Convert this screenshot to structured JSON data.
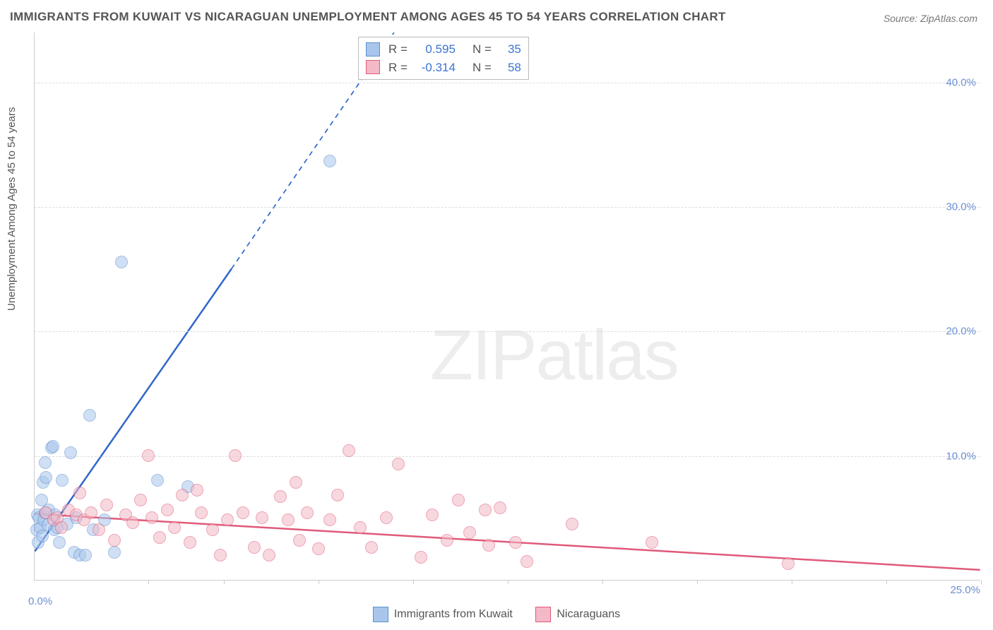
{
  "title": "IMMIGRANTS FROM KUWAIT VS NICARAGUAN UNEMPLOYMENT AMONG AGES 45 TO 54 YEARS CORRELATION CHART",
  "source": "Source: ZipAtlas.com",
  "yaxis_title": "Unemployment Among Ages 45 to 54 years",
  "watermark_a": "ZIP",
  "watermark_b": "atlas",
  "chart": {
    "xlim": [
      0,
      25
    ],
    "ylim": [
      0,
      44
    ],
    "yticks": [
      10,
      20,
      30,
      40
    ],
    "ytick_labels": [
      "10.0%",
      "20.0%",
      "30.0%",
      "40.0%"
    ],
    "xtick_positions": [
      3,
      5,
      7.5,
      10,
      12.5,
      15,
      17.5,
      20,
      22.5,
      25
    ],
    "xlabel_min": "0.0%",
    "xlabel_max": "25.0%",
    "grid_color": "#dddddd",
    "background_color": "#ffffff",
    "axis_color": "#cccccc",
    "tick_label_color": "#6b8fd4",
    "marker_radius": 9,
    "marker_opacity": 0.55
  },
  "series": [
    {
      "id": "kuwait",
      "label": "Immigrants from Kuwait",
      "fill": "#a8c6ec",
      "stroke": "#5b8fd0",
      "R": "0.595",
      "N": "35",
      "trend": {
        "x1": 0,
        "y1": 2.3,
        "x2_solid": 5.2,
        "y2_solid": 25,
        "x2_dash": 9.5,
        "y2_dash": 44,
        "color": "#2f67c9",
        "width": 2.5
      },
      "points": [
        [
          0.05,
          4.0
        ],
        [
          0.08,
          5.2
        ],
        [
          0.1,
          3.0
        ],
        [
          0.12,
          5.0
        ],
        [
          0.15,
          4.2
        ],
        [
          0.18,
          6.4
        ],
        [
          0.2,
          3.5
        ],
        [
          0.22,
          7.8
        ],
        [
          0.25,
          4.8
        ],
        [
          0.28,
          5.4
        ],
        [
          0.3,
          8.2
        ],
        [
          0.28,
          9.4
        ],
        [
          0.35,
          4.4
        ],
        [
          0.38,
          5.6
        ],
        [
          0.45,
          10.6
        ],
        [
          0.48,
          10.7
        ],
        [
          0.52,
          4.0
        ],
        [
          0.55,
          5.2
        ],
        [
          0.6,
          4.2
        ],
        [
          0.65,
          3.0
        ],
        [
          0.72,
          8.0
        ],
        [
          0.85,
          4.5
        ],
        [
          0.95,
          10.2
        ],
        [
          1.05,
          2.2
        ],
        [
          1.1,
          5.0
        ],
        [
          1.2,
          2.0
        ],
        [
          1.35,
          2.0
        ],
        [
          1.45,
          13.2
        ],
        [
          1.55,
          4.0
        ],
        [
          1.85,
          4.8
        ],
        [
          2.1,
          2.2
        ],
        [
          2.3,
          25.5
        ],
        [
          3.25,
          8.0
        ],
        [
          4.05,
          7.5
        ],
        [
          7.8,
          33.6
        ]
      ]
    },
    {
      "id": "nicaraguans",
      "label": "Nicaraguans",
      "fill": "#f4b9c6",
      "stroke": "#e05a7a",
      "R": "-0.314",
      "N": "58",
      "trend": {
        "x1": 0,
        "y1": 5.3,
        "x2_solid": 25,
        "y2_solid": 0.8,
        "color": "#e05a7a",
        "width": 2.5
      },
      "points": [
        [
          0.3,
          5.4
        ],
        [
          0.5,
          4.8
        ],
        [
          0.6,
          5.0
        ],
        [
          0.7,
          4.2
        ],
        [
          0.9,
          5.6
        ],
        [
          1.1,
          5.2
        ],
        [
          1.3,
          4.8
        ],
        [
          1.5,
          5.4
        ],
        [
          1.7,
          4.0
        ],
        [
          1.9,
          6.0
        ],
        [
          2.1,
          3.2
        ],
        [
          2.4,
          5.2
        ],
        [
          2.6,
          4.6
        ],
        [
          2.8,
          6.4
        ],
        [
          3.1,
          5.0
        ],
        [
          3.3,
          3.4
        ],
        [
          3.5,
          5.6
        ],
        [
          3.7,
          4.2
        ],
        [
          3.9,
          6.8
        ],
        [
          4.1,
          3.0
        ],
        [
          4.4,
          5.4
        ],
        [
          4.7,
          4.0
        ],
        [
          4.9,
          2.0
        ],
        [
          5.1,
          4.8
        ],
        [
          5.3,
          10.0
        ],
        [
          5.5,
          5.4
        ],
        [
          5.8,
          2.6
        ],
        [
          6.0,
          5.0
        ],
        [
          6.2,
          2.0
        ],
        [
          6.5,
          6.7
        ],
        [
          6.7,
          4.8
        ],
        [
          7.0,
          3.2
        ],
        [
          7.2,
          5.4
        ],
        [
          7.5,
          2.5
        ],
        [
          7.8,
          4.8
        ],
        [
          8.0,
          6.8
        ],
        [
          8.3,
          10.4
        ],
        [
          8.6,
          4.2
        ],
        [
          8.9,
          2.6
        ],
        [
          9.3,
          5.0
        ],
        [
          9.6,
          9.3
        ],
        [
          10.2,
          1.8
        ],
        [
          10.5,
          5.2
        ],
        [
          10.9,
          3.2
        ],
        [
          11.2,
          6.4
        ],
        [
          11.5,
          3.8
        ],
        [
          11.9,
          5.6
        ],
        [
          12.0,
          2.8
        ],
        [
          12.3,
          5.8
        ],
        [
          12.7,
          3.0
        ],
        [
          13.0,
          1.5
        ],
        [
          14.2,
          4.5
        ],
        [
          16.3,
          3.0
        ],
        [
          19.9,
          1.3
        ],
        [
          4.3,
          7.2
        ],
        [
          6.9,
          7.8
        ],
        [
          3.0,
          10.0
        ],
        [
          1.2,
          7.0
        ]
      ]
    }
  ],
  "stats_labels": {
    "r": "R =",
    "n": "N ="
  },
  "legend": {
    "items": [
      {
        "label": "Immigrants from Kuwait",
        "fill": "#a8c6ec",
        "stroke": "#5b8fd0"
      },
      {
        "label": "Nicaraguans",
        "fill": "#f4b9c6",
        "stroke": "#e05a7a"
      }
    ]
  }
}
